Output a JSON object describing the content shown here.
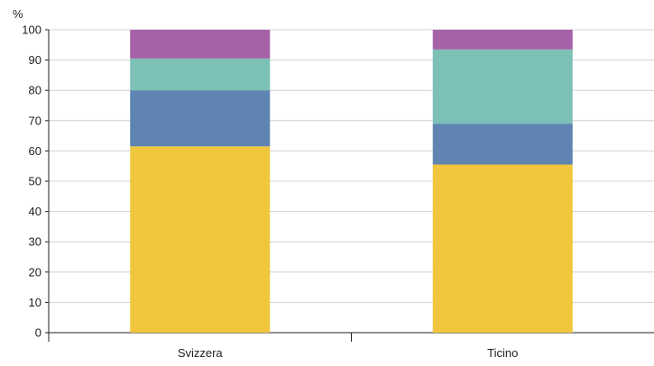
{
  "chart_data": {
    "type": "bar",
    "stacked": true,
    "y_unit": "%",
    "categories": [
      "Svizzera",
      "Ticino"
    ],
    "series": [
      {
        "color": "#f0c63d",
        "values": [
          61.5,
          55.5
        ]
      },
      {
        "color": "#5f84b1",
        "values": [
          18.5,
          13.5
        ]
      },
      {
        "color": "#7cc0b6",
        "values": [
          10.5,
          24.5
        ]
      },
      {
        "color": "#a662a8",
        "values": [
          9.5,
          6.5
        ]
      }
    ],
    "y_ticks": [
      "0",
      "10",
      "20",
      "30",
      "40",
      "50",
      "60",
      "70",
      "80",
      "90",
      "100"
    ],
    "ylim": [
      0,
      100
    ],
    "grid": true,
    "legend": "none"
  }
}
